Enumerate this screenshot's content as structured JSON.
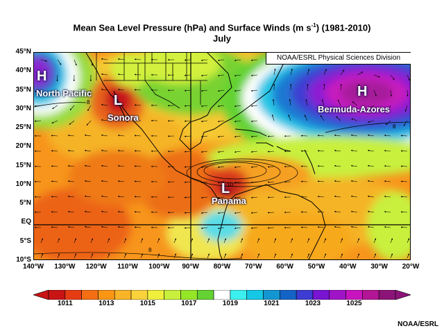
{
  "title": {
    "line1_prefix": "Mean Sea Level Pressure (hPa) and Surface Winds (m s",
    "line1_sup": "-1",
    "line1_suffix": ") (1981-2010)",
    "line2": "July"
  },
  "credit_box": "NOAA/ESRL Physical Sciences Division",
  "footer": "NOAA/ESRL",
  "lat_labels": [
    "45°N",
    "40°N",
    "35°N",
    "30°N",
    "25°N",
    "20°N",
    "15°N",
    "10°N",
    "5°N",
    "EQ",
    "5°S",
    "10°S"
  ],
  "lon_labels": [
    "140°W",
    "130°W",
    "120°W",
    "110°W",
    "100°W",
    "90°W",
    "80°W",
    "70°W",
    "60°W",
    "50°W",
    "40°W",
    "30°W",
    "20°W"
  ],
  "colorbar": {
    "tick_labels": [
      "1011",
      "1013",
      "1015",
      "1017",
      "1019",
      "1021",
      "1023",
      "1025"
    ],
    "colors": [
      "#c81414",
      "#e63c14",
      "#f56e14",
      "#fa9614",
      "#fab428",
      "#fad23c",
      "#f0f03c",
      "#c8f03c",
      "#96e628",
      "#64d232",
      "#ffffff",
      "#3cf0f0",
      "#14c8e6",
      "#1496d2",
      "#1464c8",
      "#3c3cd2",
      "#7814d2",
      "#a014c8",
      "#c814be",
      "#b41496",
      "#8c1478"
    ]
  },
  "pressure_systems": [
    {
      "letter": "H",
      "label": "North Pacific"
    },
    {
      "letter": "L",
      "label": "Sonora"
    },
    {
      "letter": "H",
      "label": "Bermuda-Azores"
    },
    {
      "letter": "L",
      "label": "Panama"
    }
  ],
  "contour_labels": [
    "8",
    "8",
    "8",
    "10"
  ]
}
